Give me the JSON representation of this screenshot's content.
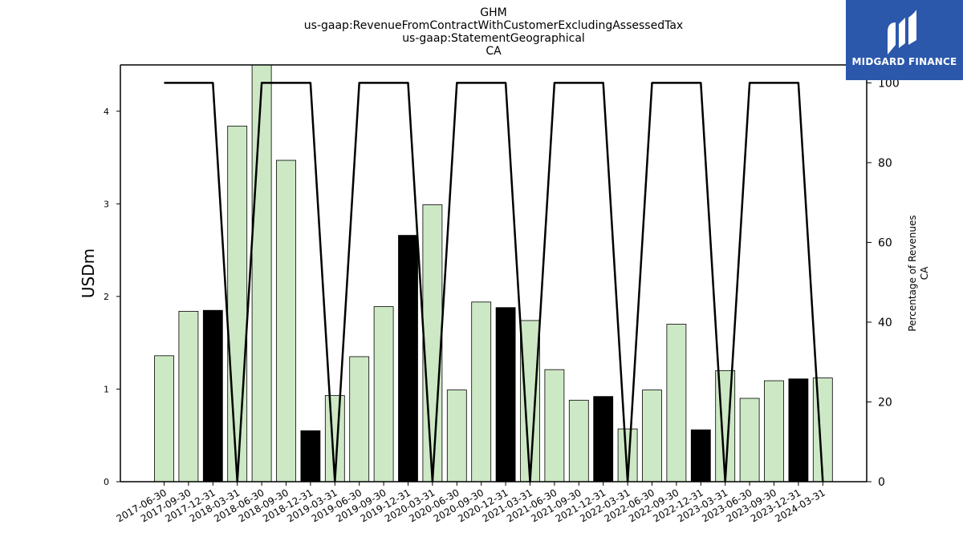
{
  "chart_data": {
    "type": "bar",
    "title_lines": [
      "GHM",
      "us-gaap:RevenueFromContractWithCustomerExcludingAssessedTax",
      "us-gaap:StatementGeographical",
      "CA"
    ],
    "ylabel": "USDm",
    "y2label_lines": [
      "Percentage of Revenues",
      "CA"
    ],
    "ylim": [
      0,
      4.5
    ],
    "y2lim": [
      0,
      104.5
    ],
    "yticks": [
      0,
      1,
      2,
      3,
      4
    ],
    "y2ticks": [
      0,
      20,
      40,
      60,
      80,
      100
    ],
    "categories": [
      "2017-06-30",
      "2017-09-30",
      "2017-12-31",
      "2018-03-31",
      "2018-06-30",
      "2018-09-30",
      "2018-12-31",
      "2019-03-31",
      "2019-06-30",
      "2019-09-30",
      "2019-12-31",
      "2020-03-31",
      "2020-06-30",
      "2020-09-30",
      "2020-12-31",
      "2021-03-31",
      "2021-06-30",
      "2021-09-30",
      "2021-12-31",
      "2022-03-31",
      "2022-06-30",
      "2022-09-30",
      "2022-12-31",
      "2023-03-31",
      "2023-06-30",
      "2023-09-30",
      "2023-12-31",
      "2024-03-31"
    ],
    "series": [
      {
        "kind": "bar",
        "values": [
          1.36,
          1.84,
          1.85,
          3.84,
          4.55,
          3.47,
          0.55,
          0.93,
          1.35,
          1.89,
          2.66,
          2.99,
          0.99,
          1.94,
          1.88,
          1.74,
          1.21,
          0.88,
          0.92,
          0.57,
          0.99,
          1.7,
          0.56,
          1.2,
          0.9,
          1.09,
          1.11,
          1.12
        ],
        "highlighted": [
          false,
          false,
          true,
          false,
          false,
          false,
          true,
          false,
          false,
          false,
          true,
          false,
          false,
          false,
          true,
          false,
          false,
          false,
          true,
          false,
          false,
          false,
          true,
          false,
          false,
          false,
          true,
          false
        ]
      },
      {
        "kind": "line",
        "axis": "right",
        "values": [
          100,
          100,
          100,
          0,
          100,
          100,
          100,
          0,
          100,
          100,
          100,
          0,
          100,
          100,
          100,
          0,
          100,
          100,
          100,
          0,
          100,
          100,
          100,
          0,
          100,
          100,
          100,
          0
        ]
      }
    ],
    "colors": {
      "bar": "#cde8c5",
      "bar_highlight": "#000000",
      "line": "#000000"
    },
    "grid": false,
    "legend": "none"
  },
  "logo": {
    "text": "MIDGARD FINANCE",
    "background": "#2b58ab"
  }
}
